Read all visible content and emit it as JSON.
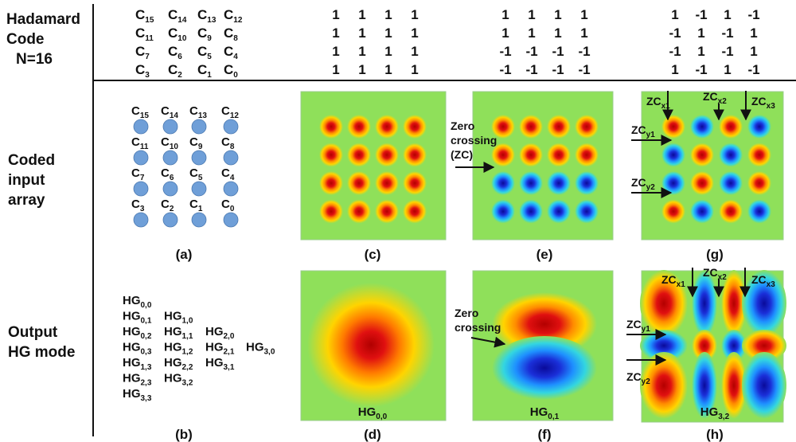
{
  "header": {
    "title_lines": [
      "Hadamard",
      "Code",
      "N=16"
    ],
    "code_rows": [
      {
        "items": [
          {
            "base": "C",
            "sub": "15"
          },
          {
            "base": "C",
            "sub": "14"
          },
          {
            "base": "C",
            "sub": "13"
          },
          {
            "base": "C",
            "sub": "12"
          }
        ]
      },
      {
        "items": [
          {
            "base": "C",
            "sub": "11"
          },
          {
            "base": "C",
            "sub": "10"
          },
          {
            "base": "C",
            "sub": "9"
          },
          {
            "base": "C",
            "sub": "8"
          }
        ]
      },
      {
        "items": [
          {
            "base": "C",
            "sub": "7"
          },
          {
            "base": "C",
            "sub": "6"
          },
          {
            "base": "C",
            "sub": "5"
          },
          {
            "base": "C",
            "sub": "4"
          }
        ]
      },
      {
        "items": [
          {
            "base": "C",
            "sub": "3"
          },
          {
            "base": "C",
            "sub": "2"
          },
          {
            "base": "C",
            "sub": "1"
          },
          {
            "base": "C",
            "sub": "0"
          }
        ]
      }
    ],
    "matrices": [
      [
        [
          "1",
          "1",
          "1",
          "1"
        ],
        [
          "1",
          "1",
          "1",
          "1"
        ],
        [
          "1",
          "1",
          "1",
          "1"
        ],
        [
          "1",
          "1",
          "1",
          "1"
        ]
      ],
      [
        [
          "1",
          "1",
          "1",
          "1"
        ],
        [
          "1",
          "1",
          "1",
          "1"
        ],
        [
          "-1",
          "-1",
          "-1",
          "-1"
        ],
        [
          "-1",
          "-1",
          "-1",
          "-1"
        ]
      ],
      [
        [
          "1",
          "-1",
          "1",
          "-1"
        ],
        [
          "-1",
          "1",
          "-1",
          "1"
        ],
        [
          "-1",
          "1",
          "-1",
          "1"
        ],
        [
          "1",
          "-1",
          "1",
          "-1"
        ]
      ]
    ]
  },
  "rows": {
    "coded": [
      "Coded",
      "input",
      "array"
    ],
    "output": [
      "Output",
      "HG mode"
    ]
  },
  "coded_array": {
    "labels": [
      [
        {
          "base": "C",
          "sub": "15"
        },
        {
          "base": "C",
          "sub": "14"
        },
        {
          "base": "C",
          "sub": "13"
        },
        {
          "base": "C",
          "sub": "12"
        }
      ],
      [
        {
          "base": "C",
          "sub": "11"
        },
        {
          "base": "C",
          "sub": "10"
        },
        {
          "base": "C",
          "sub": "9"
        },
        {
          "base": "C",
          "sub": "8"
        }
      ],
      [
        {
          "base": "C",
          "sub": "7"
        },
        {
          "base": "C",
          "sub": "6"
        },
        {
          "base": "C",
          "sub": "5"
        },
        {
          "base": "C",
          "sub": "4"
        }
      ],
      [
        {
          "base": "C",
          "sub": "3"
        },
        {
          "base": "C",
          "sub": "2"
        },
        {
          "base": "C",
          "sub": "1"
        },
        {
          "base": "C",
          "sub": "0"
        }
      ]
    ],
    "dot_color": "#6f9fd8"
  },
  "hg_list": {
    "columns": [
      [
        {
          "base": "HG",
          "sub": "0,0"
        },
        {
          "base": "HG",
          "sub": "0,1"
        },
        {
          "base": "HG",
          "sub": "0,2"
        },
        {
          "base": "HG",
          "sub": "0,3"
        },
        {
          "base": "HG",
          "sub": "1,3"
        },
        {
          "base": "HG",
          "sub": "2,3"
        },
        {
          "base": "HG",
          "sub": "3,3"
        }
      ],
      [
        {
          "base": "HG",
          "sub": "1,0"
        },
        {
          "base": "HG",
          "sub": "1,1"
        },
        {
          "base": "HG",
          "sub": "1,2"
        },
        {
          "base": "HG",
          "sub": "2,2"
        },
        {
          "base": "HG",
          "sub": "3,2"
        }
      ],
      [
        {
          "base": "HG",
          "sub": "2,0"
        },
        {
          "base": "HG",
          "sub": "2,1"
        },
        {
          "base": "HG",
          "sub": "3,1"
        }
      ],
      [
        {
          "base": "HG",
          "sub": "3,0"
        }
      ]
    ]
  },
  "panels": {
    "a": "(a)",
    "b": "(b)",
    "c": "(c)",
    "d": "(d)",
    "e": "(e)",
    "f": "(f)",
    "g": "(g)",
    "h": "(h)"
  },
  "panel_e": {
    "zc_lines": [
      "Zero",
      "crossing",
      "(ZC)"
    ]
  },
  "panel_f": {
    "zc_lines": [
      "Zero",
      "crossing"
    ],
    "caption": {
      "base": "HG",
      "sub": "0,1"
    }
  },
  "panel_d": {
    "caption": {
      "base": "HG",
      "sub": "0,0"
    }
  },
  "panel_h": {
    "caption": {
      "base": "HG",
      "sub": "3,2"
    }
  },
  "zc_labels": {
    "x1": {
      "base": "ZC",
      "sub": "x1"
    },
    "x2": {
      "base": "ZC",
      "sub": "x2"
    },
    "x3": {
      "base": "ZC",
      "sub": "x3"
    },
    "y1": {
      "base": "ZC",
      "sub": "y1"
    },
    "y2": {
      "base": "ZC",
      "sub": "y2"
    }
  },
  "colors": {
    "background_field": "#8fe05a",
    "positive_peak": "#c80000",
    "negative_peak": "#1414c8",
    "frame": "#9acd8c"
  }
}
